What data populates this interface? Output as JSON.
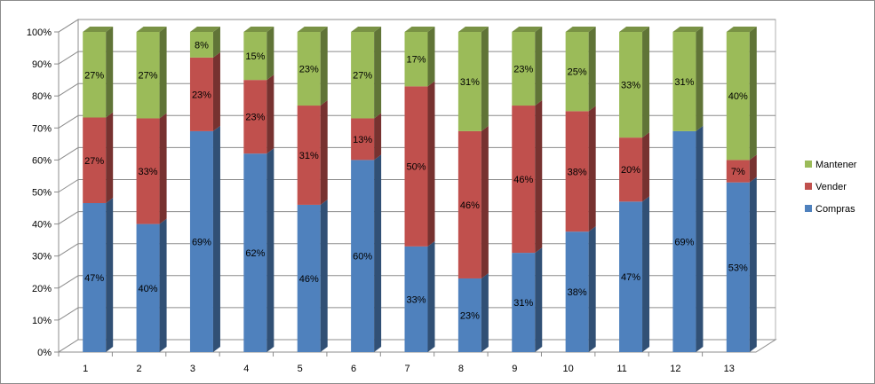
{
  "chart_data": {
    "type": "bar",
    "stacked": true,
    "percent_stacked": true,
    "three_d": true,
    "categories": [
      "1",
      "2",
      "3",
      "4",
      "5",
      "6",
      "7",
      "8",
      "9",
      "10",
      "11",
      "12",
      "13"
    ],
    "series": [
      {
        "name": "Compras",
        "color": "#4f81bd",
        "values": [
          47,
          40,
          69,
          62,
          46,
          60,
          33,
          23,
          31,
          38,
          47,
          69,
          53
        ],
        "labels": [
          "47%",
          "40%",
          "69%",
          "62%",
          "46%",
          "60%",
          "33%",
          "23%",
          "31%",
          "38%",
          "47%",
          "69%",
          "53%"
        ]
      },
      {
        "name": "Vender",
        "color": "#c0504d",
        "values": [
          27,
          33,
          23,
          23,
          31,
          13,
          50,
          46,
          46,
          38,
          20,
          0,
          7
        ],
        "labels": [
          "27%",
          "33%",
          "23%",
          "23%",
          "31%",
          "13%",
          "50%",
          "46%",
          "46%",
          "38%",
          "20%",
          "",
          "7%"
        ]
      },
      {
        "name": "Mantener",
        "color": "#9bbb59",
        "values": [
          27,
          27,
          8,
          15,
          23,
          27,
          17,
          31,
          23,
          25,
          33,
          31,
          40
        ],
        "labels": [
          "27%",
          "27%",
          "8%",
          "15%",
          "23%",
          "27%",
          "17%",
          "31%",
          "23%",
          "25%",
          "33%",
          "31%",
          "40%"
        ]
      }
    ],
    "ylim": [
      0,
      100
    ],
    "y_ticks": [
      "0%",
      "10%",
      "20%",
      "30%",
      "40%",
      "50%",
      "60%",
      "70%",
      "80%",
      "90%",
      "100%"
    ],
    "grid": true,
    "legend": {
      "position": "right",
      "entries": [
        {
          "name": "Mantener",
          "color": "#9bbb59"
        },
        {
          "name": "Vender",
          "color": "#c0504d"
        },
        {
          "name": "Compras",
          "color": "#4f81bd"
        }
      ]
    }
  }
}
